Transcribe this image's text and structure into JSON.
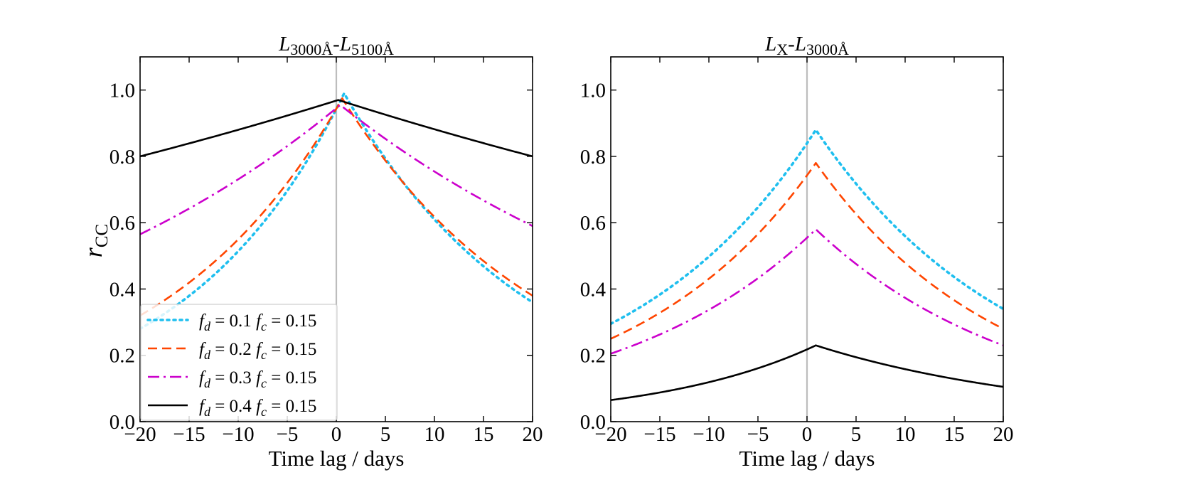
{
  "chart_data": [
    {
      "type": "line",
      "title": {
        "main": "L",
        "sub": "3000Å",
        "sep": "-",
        "main2": "L",
        "sub2": "5100Å"
      },
      "xlabel": "Time lag / days",
      "ylabel": {
        "main": "r",
        "sub": "CC"
      },
      "xlim": [
        -20,
        20
      ],
      "ylim": [
        0.0,
        1.1
      ],
      "xticks": [
        -20,
        -15,
        -10,
        -5,
        0,
        5,
        10,
        15,
        20
      ],
      "xtick_labels": [
        "−20",
        "−15",
        "−10",
        "−5",
        "0",
        "5",
        "10",
        "15",
        "20"
      ],
      "yticks": [
        0.0,
        0.2,
        0.4,
        0.6,
        0.8,
        1.0
      ],
      "ytick_labels": [
        "0.0",
        "0.2",
        "0.4",
        "0.6",
        "0.8",
        "1.0"
      ],
      "vline_x": 0,
      "legend_location": "lower-left",
      "series": [
        {
          "name": "fd=0.1 fc=0.15",
          "fd": "0.1",
          "fc": "0.15",
          "color": "#1fbfef",
          "style": "dotted",
          "peak_x": 0.8,
          "peak_y": 0.99,
          "left_y": 0.28,
          "right_y": 0.36
        },
        {
          "name": "fd=0.2 fc=0.15",
          "fd": "0.2",
          "fc": "0.15",
          "color": "#ff4500",
          "style": "dashed",
          "peak_x": 0.6,
          "peak_y": 0.975,
          "left_y": 0.32,
          "right_y": 0.38
        },
        {
          "name": "fd=0.3 fc=0.15",
          "fd": "0.3",
          "fc": "0.15",
          "color": "#cc00cc",
          "style": "dashdot",
          "peak_x": 0.4,
          "peak_y": 0.955,
          "left_y": 0.565,
          "right_y": 0.59
        },
        {
          "name": "fd=0.4 fc=0.15",
          "fd": "0.4",
          "fc": "0.15",
          "color": "#000000",
          "style": "solid",
          "peak_x": 0.2,
          "peak_y": 0.97,
          "left_y": 0.8,
          "right_y": 0.8
        }
      ]
    },
    {
      "type": "line",
      "title": {
        "main": "L",
        "sub": "X",
        "sep": "-",
        "main2": "L",
        "sub2": "3000Å"
      },
      "xlabel": "Time lag / days",
      "xlim": [
        -20,
        20
      ],
      "ylim": [
        0.0,
        1.1
      ],
      "xticks": [
        -20,
        -15,
        -10,
        -5,
        0,
        5,
        10,
        15,
        20
      ],
      "xtick_labels": [
        "−20",
        "−15",
        "−10",
        "−5",
        "0",
        "5",
        "10",
        "15",
        "20"
      ],
      "yticks": [
        0.0,
        0.2,
        0.4,
        0.6,
        0.8,
        1.0
      ],
      "ytick_labels": [
        "0.0",
        "0.2",
        "0.4",
        "0.6",
        "0.8",
        "1.0"
      ],
      "vline_x": 0,
      "series": [
        {
          "name": "fd=0.1 fc=0.15",
          "color": "#1fbfef",
          "style": "dotted",
          "peak_x": 0.9,
          "peak_y": 0.88,
          "left_y": 0.295,
          "right_y": 0.34
        },
        {
          "name": "fd=0.2 fc=0.15",
          "color": "#ff4500",
          "style": "dashed",
          "peak_x": 0.9,
          "peak_y": 0.78,
          "left_y": 0.25,
          "right_y": 0.28
        },
        {
          "name": "fd=0.3 fc=0.15",
          "color": "#cc00cc",
          "style": "dashdot",
          "peak_x": 0.9,
          "peak_y": 0.58,
          "left_y": 0.205,
          "right_y": 0.23
        },
        {
          "name": "fd=0.4 fc=0.15",
          "color": "#000000",
          "style": "solid",
          "peak_x": 0.9,
          "peak_y": 0.23,
          "left_y": 0.065,
          "right_y": 0.105
        }
      ]
    }
  ]
}
